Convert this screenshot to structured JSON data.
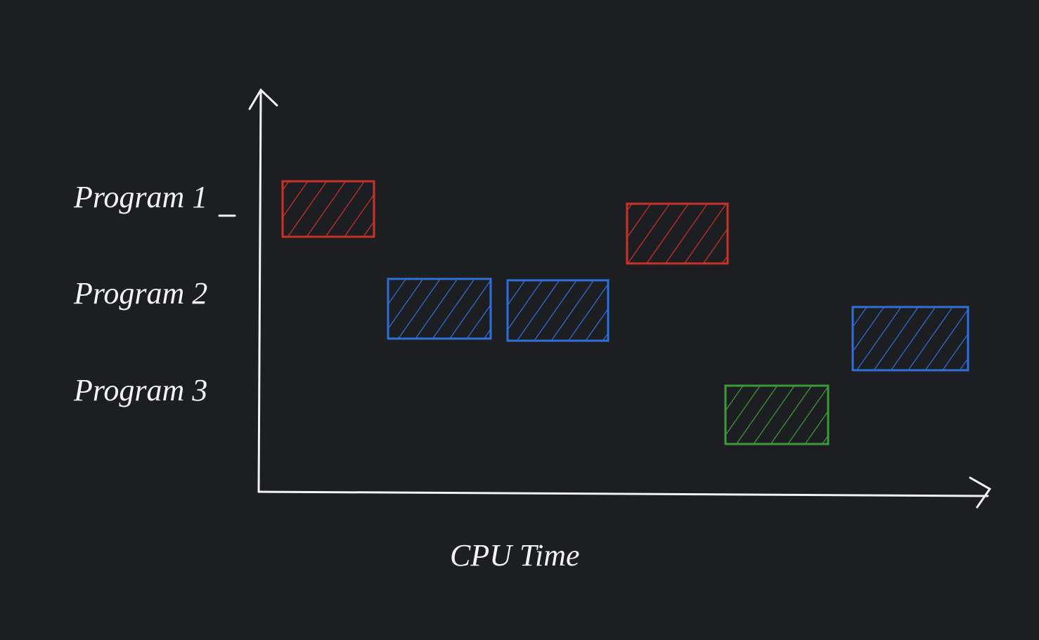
{
  "y_labels": [
    "Program 1",
    "Program 2",
    "Program 3"
  ],
  "x_label": "CPU Time"
}
